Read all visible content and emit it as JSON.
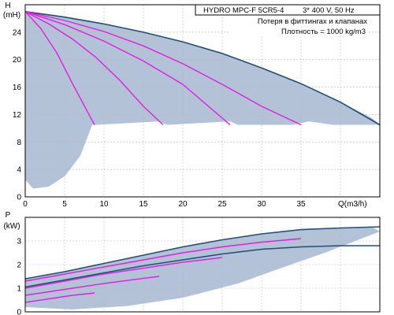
{
  "chart_data": [
    {
      "type": "line",
      "header": {
        "model": "HYDRO MPC-F 5CR5-4",
        "supply": "3* 400 V, 50 Hz",
        "note": "Потеря в фиттингах и клапанах",
        "density": "Плотность = 1000 kg/m3"
      },
      "ylabel": "H",
      "yunit": "(mH)",
      "xlabel": "Q(m3/h)",
      "xlim": [
        0,
        45
      ],
      "ylim": [
        0,
        28
      ],
      "xticks": [
        0,
        5,
        10,
        15,
        20,
        25,
        30,
        35
      ],
      "yticks": [
        0,
        4,
        8,
        12,
        16,
        20,
        24
      ],
      "grid": true,
      "colors": {
        "envelope": "#b3c2d6",
        "max_curve": "#1f4e79",
        "pump_curves": "#e020e0"
      },
      "envelope": {
        "x": [
          0,
          4,
          8,
          10,
          15,
          20,
          25,
          30,
          35,
          40,
          44,
          45,
          39,
          36,
          34,
          27,
          26,
          18,
          17,
          9,
          8.5,
          8,
          7,
          5,
          3,
          1,
          0
        ],
        "y": [
          27,
          26.4,
          25.7,
          25.2,
          24,
          22.6,
          20.9,
          18.8,
          16.5,
          13.8,
          11.5,
          10.5,
          10.5,
          11,
          10.5,
          10.5,
          11,
          10.5,
          11,
          10.5,
          10.5,
          9,
          6,
          3,
          1.5,
          1.2,
          2.5
        ]
      },
      "series": [
        {
          "role": "max",
          "x": [
            0,
            5,
            10,
            15,
            20,
            25,
            30,
            35,
            40,
            45
          ],
          "y": [
            27,
            26.2,
            25.2,
            24,
            22.6,
            20.9,
            18.8,
            16.5,
            13.8,
            10.5
          ]
        },
        {
          "role": "pump",
          "x": [
            0,
            2,
            4,
            6,
            8,
            8.8
          ],
          "y": [
            27,
            24.5,
            21,
            16.5,
            12.2,
            10.5
          ]
        },
        {
          "role": "pump",
          "x": [
            0,
            3,
            6,
            9,
            12,
            15,
            17.5
          ],
          "y": [
            27,
            25.2,
            23,
            20.3,
            17,
            13.2,
            10.5
          ]
        },
        {
          "role": "pump",
          "x": [
            0,
            5,
            10,
            15,
            20,
            26
          ],
          "y": [
            27,
            25.1,
            22.7,
            19.8,
            16.4,
            10.5
          ]
        },
        {
          "role": "pump",
          "x": [
            0,
            5,
            10,
            15,
            20,
            25,
            30,
            35
          ],
          "y": [
            27,
            25.7,
            24.1,
            22,
            19.4,
            16.4,
            13.2,
            10.5
          ]
        }
      ]
    },
    {
      "type": "line",
      "ylabel": "P",
      "yunit": "(kW)",
      "xlim": [
        0,
        45
      ],
      "ylim": [
        0,
        4
      ],
      "xticks": [
        0,
        5,
        10,
        15,
        20,
        25,
        30,
        35
      ],
      "yticks": [
        0,
        1,
        2,
        3
      ],
      "grid": true,
      "colors": {
        "envelope": "#b3c2d6",
        "max_curve": "#1f4e79",
        "pump_curves": "#e020e0"
      },
      "envelope": {
        "x": [
          0,
          5,
          10,
          15,
          20,
          25,
          30,
          35,
          40,
          44,
          45,
          38,
          32,
          27,
          20,
          13,
          6,
          0
        ],
        "y": [
          1.4,
          1.7,
          2.05,
          2.4,
          2.75,
          3.05,
          3.3,
          3.48,
          3.55,
          3.6,
          3.4,
          2.5,
          1.8,
          1.2,
          0.6,
          0.25,
          0.1,
          0.2
        ]
      },
      "series": [
        {
          "role": "max",
          "x": [
            0,
            5,
            10,
            15,
            20,
            25,
            30,
            35,
            40,
            45
          ],
          "y": [
            1.4,
            1.7,
            2.05,
            2.4,
            2.75,
            3.05,
            3.3,
            3.48,
            3.55,
            3.6
          ]
        },
        {
          "role": "max2",
          "x": [
            0,
            5,
            10,
            15,
            20,
            25,
            30,
            35,
            40,
            45
          ],
          "y": [
            1.05,
            1.35,
            1.65,
            1.95,
            2.2,
            2.45,
            2.65,
            2.75,
            2.8,
            2.8
          ]
        },
        {
          "role": "pump",
          "x": [
            0,
            5,
            10,
            15,
            20,
            25,
            30,
            35
          ],
          "y": [
            1.3,
            1.6,
            1.9,
            2.2,
            2.5,
            2.75,
            2.95,
            3.1
          ]
        },
        {
          "role": "pump",
          "x": [
            0,
            5,
            10,
            15,
            20,
            25
          ],
          "y": [
            1.0,
            1.3,
            1.6,
            1.85,
            2.1,
            2.3
          ]
        },
        {
          "role": "pump",
          "x": [
            0,
            5,
            10,
            15,
            17
          ],
          "y": [
            0.7,
            0.95,
            1.2,
            1.42,
            1.5
          ]
        },
        {
          "role": "pump",
          "x": [
            0,
            3,
            6,
            8.8
          ],
          "y": [
            0.4,
            0.55,
            0.7,
            0.8
          ]
        }
      ]
    }
  ]
}
